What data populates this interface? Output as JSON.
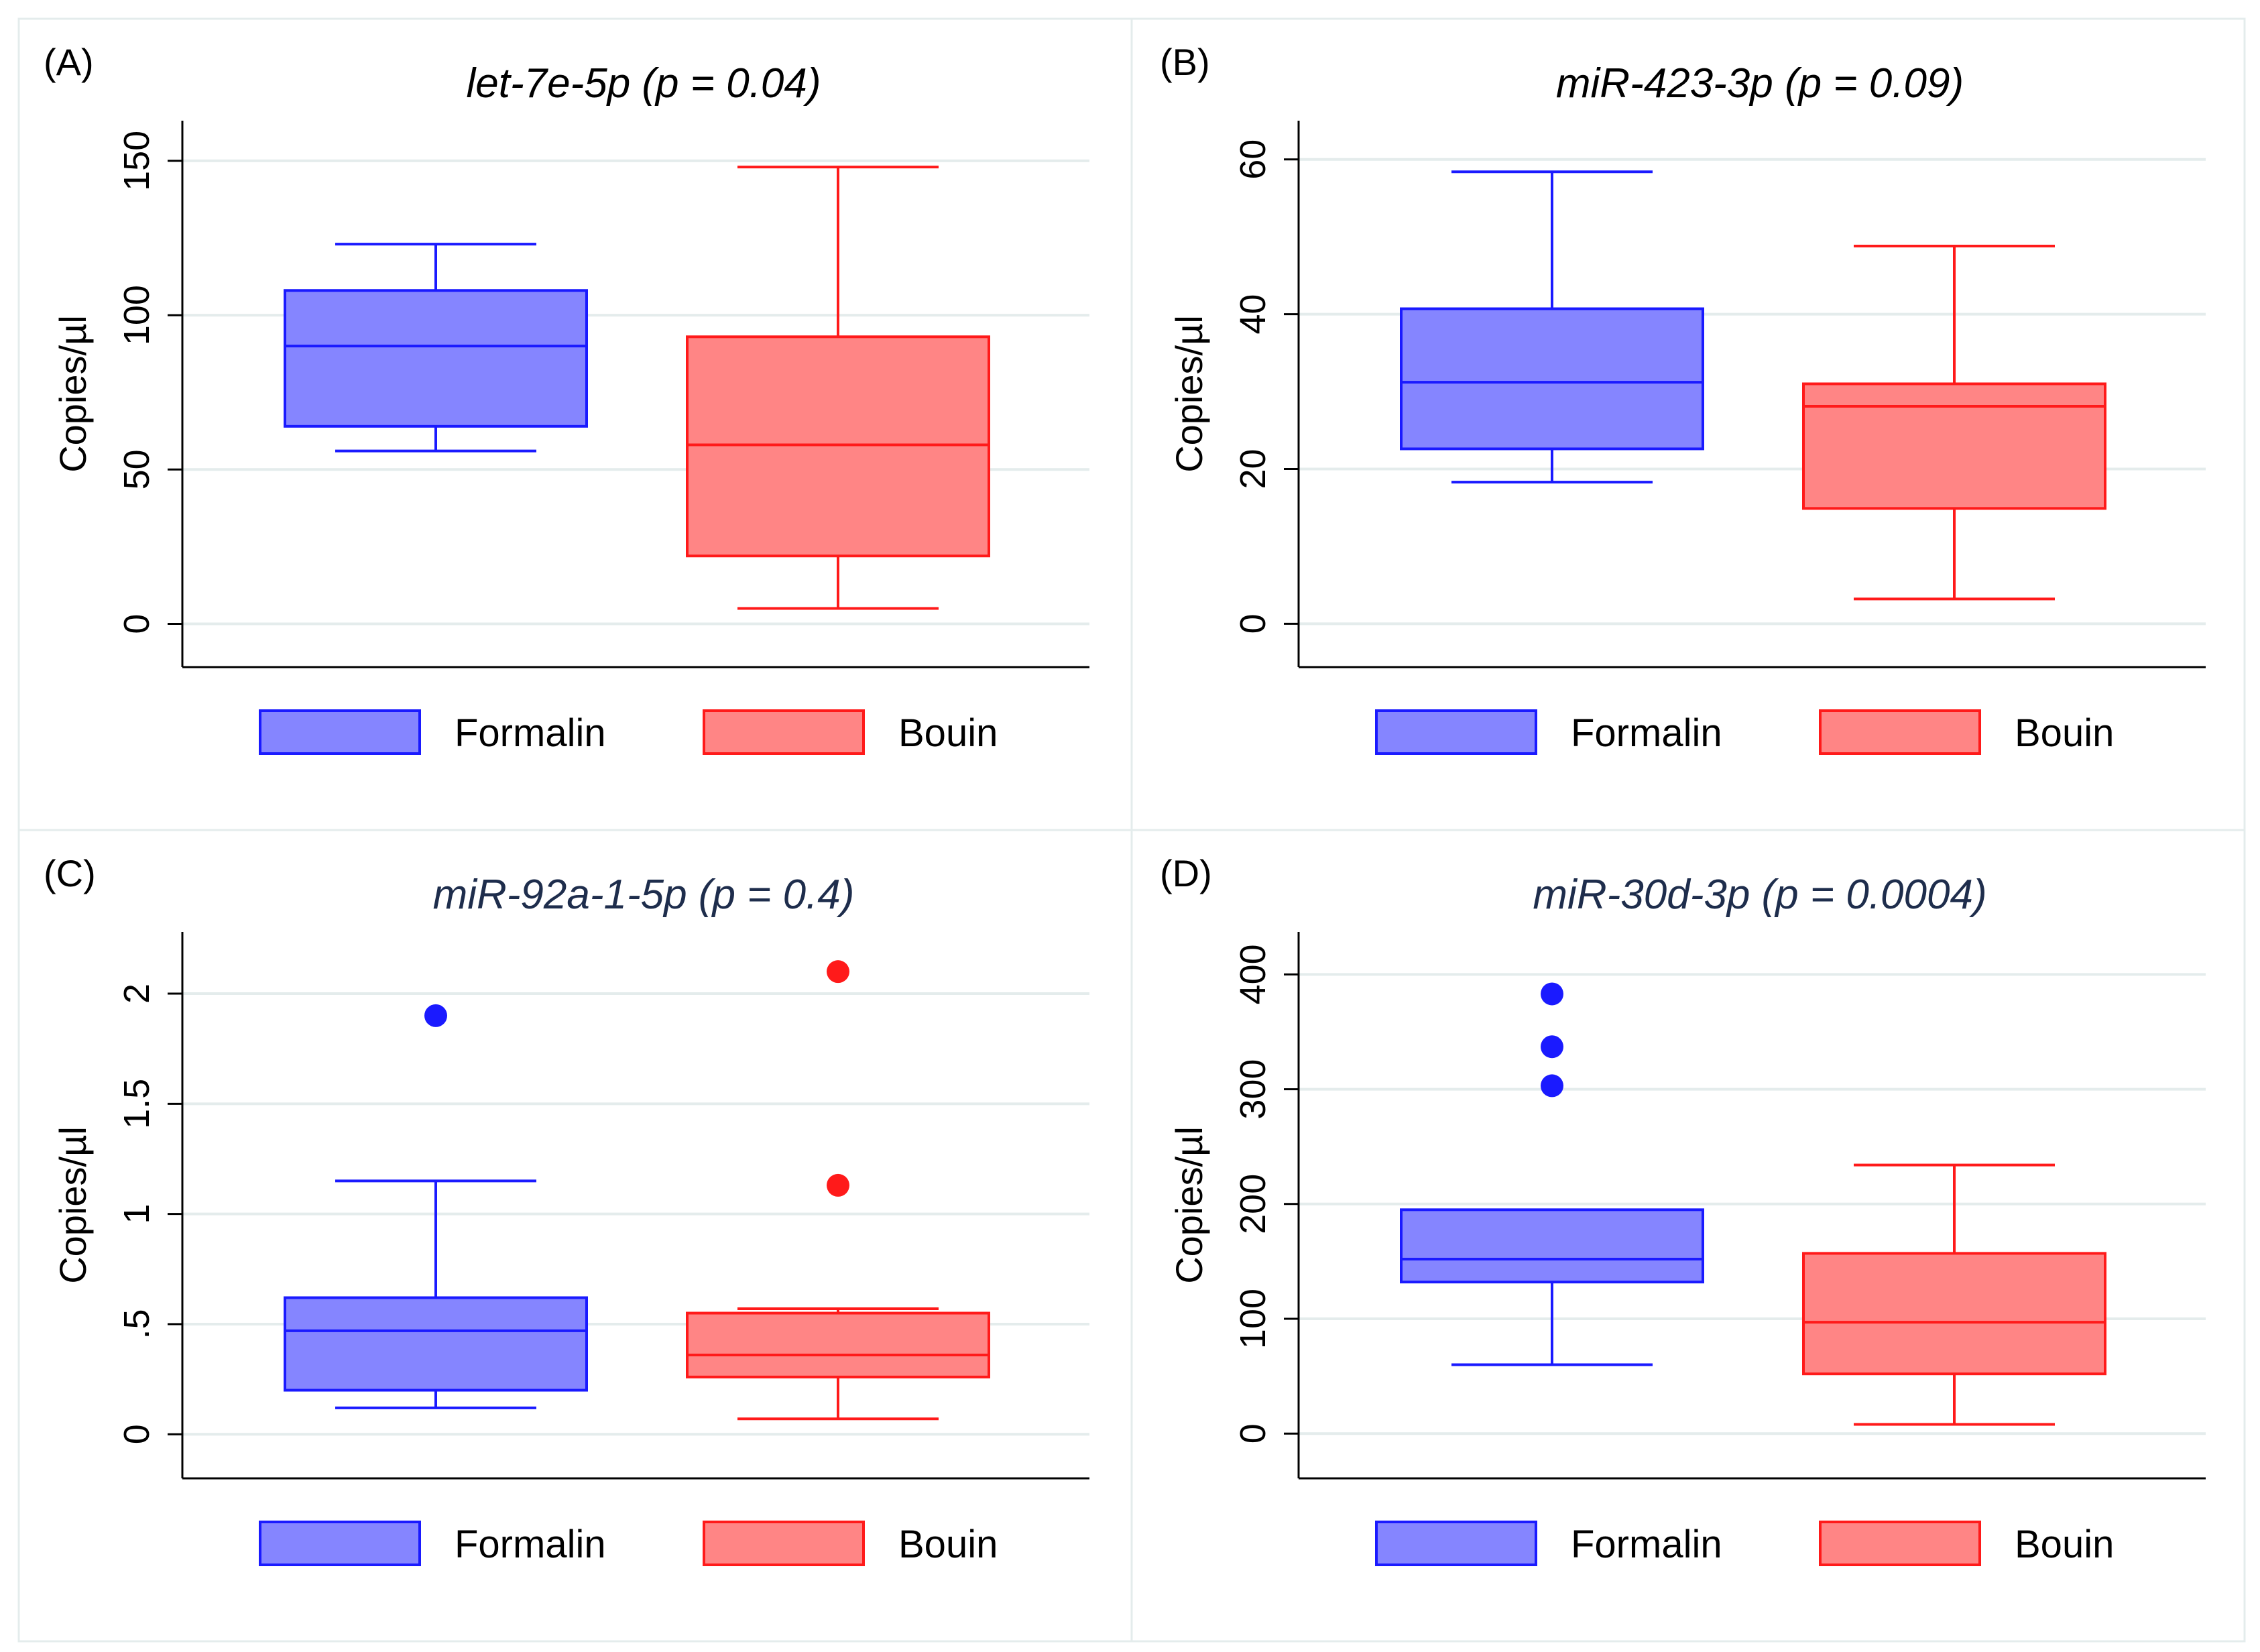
{
  "legend": {
    "formalin": "Formalin",
    "bouin": "Bouin"
  },
  "colors": {
    "formalin_stroke": "#1a1aff",
    "formalin_fill": "#8585ff",
    "bouin_stroke": "#ff1a1a",
    "bouin_fill": "#ff8585",
    "grid": "#e4ecec",
    "panel_border": "#e4ecec",
    "axis": "#000000",
    "title_dark": "#000000",
    "title_navy": "#1e2d4c"
  },
  "chart_data": [
    {
      "type": "box",
      "panel_label": "(A)",
      "title": "let-7e-5p (p = 0.04)",
      "ylabel": "Copies/µl",
      "ylim": [
        -14,
        163
      ],
      "yticks": [
        0,
        50,
        100,
        150
      ],
      "yticklabels": [
        "0",
        "50",
        "100",
        "150"
      ],
      "categories": [
        "Formalin",
        "Bouin"
      ],
      "boxes": [
        {
          "name": "Formalin",
          "whisker_low": 56,
          "q1": 64,
          "median": 90,
          "q3": 108,
          "whisker_high": 123,
          "outliers": []
        },
        {
          "name": "Bouin",
          "whisker_low": 5,
          "q1": 22,
          "median": 58,
          "q3": 93,
          "whisker_high": 148,
          "outliers": []
        }
      ],
      "grid": true,
      "legend_position": "bottom"
    },
    {
      "type": "box",
      "panel_label": "(B)",
      "title": "miR-423-3p  (p = 0.09)",
      "ylabel": "Copies/µl",
      "ylim": [
        -5.6,
        65
      ],
      "yticks": [
        0,
        20,
        40,
        60
      ],
      "yticklabels": [
        "0",
        "20",
        "40",
        "60"
      ],
      "categories": [
        "Formalin",
        "Bouin"
      ],
      "boxes": [
        {
          "name": "Formalin",
          "whisker_low": 18.3,
          "q1": 22.6,
          "median": 31.2,
          "q3": 40.7,
          "whisker_high": 58.4,
          "outliers": []
        },
        {
          "name": "Bouin",
          "whisker_low": 3.2,
          "q1": 14.9,
          "median": 28.1,
          "q3": 31.0,
          "whisker_high": 48.8,
          "outliers": []
        }
      ],
      "grid": true,
      "legend_position": "bottom"
    },
    {
      "type": "box",
      "panel_label": "(C)",
      "title": "miR-92a-1-5p (p = 0.4)",
      "ylabel": "Copies/µl",
      "ylim": [
        -0.2,
        2.28
      ],
      "yticks": [
        0,
        0.5,
        1,
        1.5,
        2
      ],
      "yticklabels": [
        "0",
        ".5",
        "1",
        "1.5",
        "2"
      ],
      "categories": [
        "Formalin",
        "Bouin"
      ],
      "boxes": [
        {
          "name": "Formalin",
          "whisker_low": 0.12,
          "q1": 0.2,
          "median": 0.47,
          "q3": 0.62,
          "whisker_high": 1.15,
          "outliers": [
            1.9
          ]
        },
        {
          "name": "Bouin",
          "whisker_low": 0.07,
          "q1": 0.26,
          "median": 0.36,
          "q3": 0.55,
          "whisker_high": 0.57,
          "outliers": [
            1.13,
            2.1
          ]
        }
      ],
      "grid": true,
      "legend_position": "bottom"
    },
    {
      "type": "box",
      "panel_label": "(D)",
      "title": "miR-30d-3p (p = 0.0004)",
      "ylabel": "Copies/µl",
      "ylim": [
        -39,
        437
      ],
      "yticks": [
        0,
        100,
        200,
        300,
        400
      ],
      "yticklabels": [
        "0",
        "100",
        "200",
        "300",
        "400"
      ],
      "categories": [
        "Formalin",
        "Bouin"
      ],
      "boxes": [
        {
          "name": "Formalin",
          "whisker_low": 60,
          "q1": 132,
          "median": 152,
          "q3": 195,
          "whisker_high": 195,
          "outliers": [
            303,
            337,
            383
          ]
        },
        {
          "name": "Bouin",
          "whisker_low": 8,
          "q1": 52,
          "median": 97,
          "q3": 157,
          "whisker_high": 234,
          "outliers": []
        }
      ],
      "grid": true,
      "legend_position": "bottom"
    }
  ]
}
